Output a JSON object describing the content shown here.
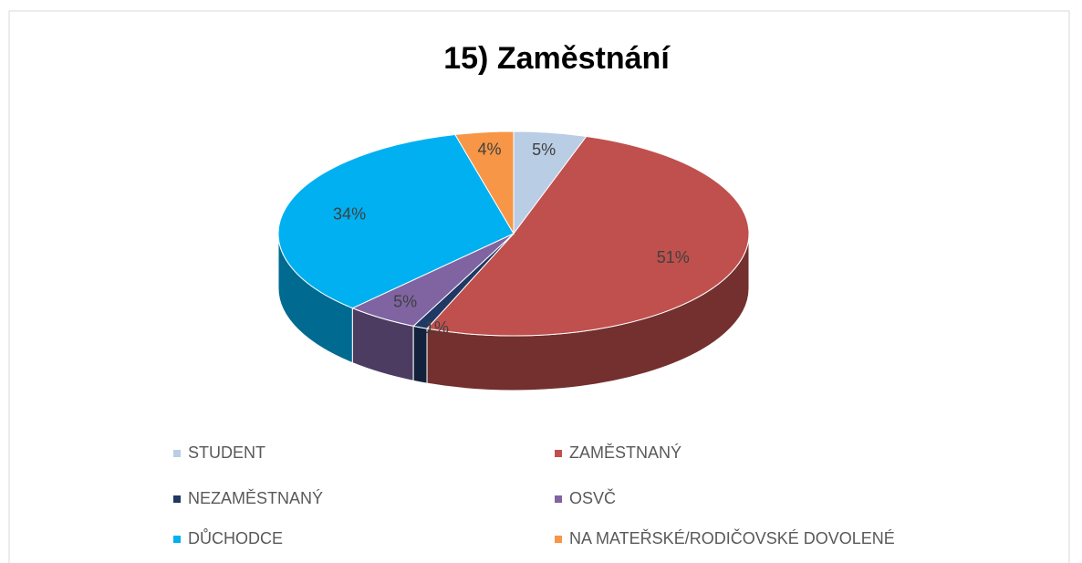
{
  "chart_data": {
    "type": "pie",
    "title": "15) Zaměstnání",
    "categories": [
      "STUDENT",
      "ZAMĚSTNANÝ",
      "NEZAMĚSTNANÝ",
      "OSVČ",
      "DŮCHODCE",
      "NA MATEŘSKÉ/RODIČOVSKÉ DOVOLENÉ"
    ],
    "values": [
      5,
      51,
      1,
      5,
      34,
      4
    ],
    "value_labels": [
      "5%",
      "51%",
      "1%",
      "5%",
      "34%",
      "4%"
    ],
    "colors": [
      "#b9cde5",
      "#c0504d",
      "#1f3864",
      "#8064a2",
      "#00b0f0",
      "#f79646"
    ]
  }
}
